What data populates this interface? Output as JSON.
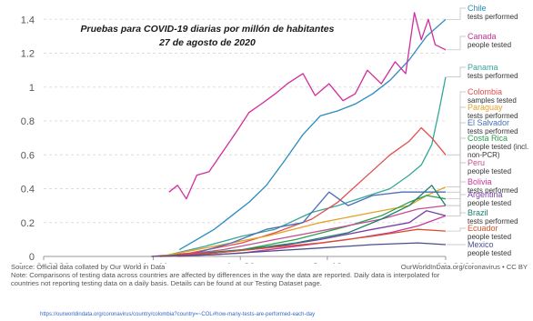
{
  "chart_data": {
    "type": "line",
    "title": "Pruebas para COVID-19 diarias por millón de habitantes",
    "subtitle": "27 de agosto de 2020",
    "x_ticks": [
      "Jan 8, 2020",
      "Mar 11",
      "Apr 30",
      "Jun 19",
      "Aug 26, 2020"
    ],
    "xlim": [
      "2020-01-08",
      "2020-08-26"
    ],
    "ylim": [
      0,
      1.45
    ],
    "y_ticks": [
      "0",
      "0.2",
      "0.4",
      "0.6",
      "0.8",
      "1",
      "1.2",
      "1.4"
    ],
    "grid": "horizontal dashed",
    "legend": "right",
    "series": [
      {
        "name": "Chile",
        "metric": "tests performed",
        "color": "#2a8cbf",
        "points": [
          [
            "2020-03-26",
            0.04
          ],
          [
            "2020-04-05",
            0.1
          ],
          [
            "2020-04-15",
            0.16
          ],
          [
            "2020-04-25",
            0.24
          ],
          [
            "2020-05-05",
            0.32
          ],
          [
            "2020-05-15",
            0.42
          ],
          [
            "2020-05-25",
            0.56
          ],
          [
            "2020-06-05",
            0.72
          ],
          [
            "2020-06-15",
            0.83
          ],
          [
            "2020-06-25",
            0.86
          ],
          [
            "2020-07-05",
            0.9
          ],
          [
            "2020-07-15",
            0.96
          ],
          [
            "2020-07-25",
            1.04
          ],
          [
            "2020-08-05",
            1.16
          ],
          [
            "2020-08-15",
            1.3
          ],
          [
            "2020-08-26",
            1.4
          ]
        ]
      },
      {
        "name": "Canada",
        "metric": "people tested",
        "color": "#d12d9c",
        "points": [
          [
            "2020-03-20",
            0.38
          ],
          [
            "2020-03-25",
            0.42
          ],
          [
            "2020-03-30",
            0.34
          ],
          [
            "2020-04-05",
            0.48
          ],
          [
            "2020-04-12",
            0.5
          ],
          [
            "2020-04-20",
            0.62
          ],
          [
            "2020-04-28",
            0.74
          ],
          [
            "2020-05-05",
            0.85
          ],
          [
            "2020-05-12",
            0.9
          ],
          [
            "2020-05-20",
            0.96
          ],
          [
            "2020-05-27",
            1.02
          ],
          [
            "2020-06-05",
            1.08
          ],
          [
            "2020-06-12",
            0.95
          ],
          [
            "2020-06-20",
            1.02
          ],
          [
            "2020-06-28",
            0.92
          ],
          [
            "2020-07-05",
            0.96
          ],
          [
            "2020-07-12",
            1.1
          ],
          [
            "2020-07-20",
            1.02
          ],
          [
            "2020-07-28",
            1.15
          ],
          [
            "2020-08-03",
            1.08
          ],
          [
            "2020-08-08",
            1.44
          ],
          [
            "2020-08-12",
            1.28
          ],
          [
            "2020-08-16",
            1.4
          ],
          [
            "2020-08-20",
            1.25
          ],
          [
            "2020-08-26",
            1.22
          ]
        ]
      },
      {
        "name": "Panama",
        "metric": "tests performed",
        "color": "#36a69a",
        "points": [
          [
            "2020-03-20",
            0.01
          ],
          [
            "2020-04-10",
            0.06
          ],
          [
            "2020-05-01",
            0.12
          ],
          [
            "2020-05-20",
            0.16
          ],
          [
            "2020-06-10",
            0.26
          ],
          [
            "2020-06-25",
            0.3
          ],
          [
            "2020-07-10",
            0.35
          ],
          [
            "2020-07-25",
            0.4
          ],
          [
            "2020-08-05",
            0.48
          ],
          [
            "2020-08-12",
            0.54
          ],
          [
            "2020-08-18",
            0.66
          ],
          [
            "2020-08-22",
            0.85
          ],
          [
            "2020-08-26",
            1.06
          ]
        ]
      },
      {
        "name": "Colombia",
        "metric": "samples tested",
        "color": "#e04e4e",
        "points": [
          [
            "2020-03-10",
            0.0
          ],
          [
            "2020-04-01",
            0.02
          ],
          [
            "2020-05-01",
            0.08
          ],
          [
            "2020-05-20",
            0.14
          ],
          [
            "2020-06-10",
            0.22
          ],
          [
            "2020-06-25",
            0.32
          ],
          [
            "2020-07-10",
            0.46
          ],
          [
            "2020-07-25",
            0.6
          ],
          [
            "2020-08-05",
            0.68
          ],
          [
            "2020-08-12",
            0.76
          ],
          [
            "2020-08-18",
            0.7
          ],
          [
            "2020-08-26",
            0.6
          ]
        ]
      },
      {
        "name": "Paraguay",
        "metric": "tests performed",
        "color": "#e3a22a",
        "points": [
          [
            "2020-03-15",
            0.0
          ],
          [
            "2020-04-15",
            0.06
          ],
          [
            "2020-05-15",
            0.12
          ],
          [
            "2020-06-15",
            0.2
          ],
          [
            "2020-07-15",
            0.26
          ],
          [
            "2020-08-05",
            0.3
          ],
          [
            "2020-08-15",
            0.36
          ],
          [
            "2020-08-26",
            0.41
          ]
        ]
      },
      {
        "name": "El Salvador",
        "metric": "tests performed",
        "color": "#4a6fb5",
        "points": [
          [
            "2020-04-01",
            0.01
          ],
          [
            "2020-04-25",
            0.08
          ],
          [
            "2020-05-15",
            0.16
          ],
          [
            "2020-06-05",
            0.2
          ],
          [
            "2020-06-20",
            0.38
          ],
          [
            "2020-07-01",
            0.3
          ],
          [
            "2020-07-15",
            0.36
          ],
          [
            "2020-08-01",
            0.38
          ],
          [
            "2020-08-26",
            0.38
          ]
        ]
      },
      {
        "name": "Costa Rica",
        "metric": "people tested (incl. non-PCR)",
        "color": "#2e9e4f",
        "points": [
          [
            "2020-03-15",
            0.0
          ],
          [
            "2020-05-01",
            0.04
          ],
          [
            "2020-06-01",
            0.1
          ],
          [
            "2020-07-01",
            0.18
          ],
          [
            "2020-07-20",
            0.24
          ],
          [
            "2020-08-05",
            0.32
          ],
          [
            "2020-08-15",
            0.36
          ],
          [
            "2020-08-26",
            0.34
          ]
        ]
      },
      {
        "name": "Peru",
        "metric": "people tested",
        "color": "#c44e8f",
        "points": [
          [
            "2020-03-20",
            0.0
          ],
          [
            "2020-04-20",
            0.04
          ],
          [
            "2020-05-20",
            0.1
          ],
          [
            "2020-06-20",
            0.16
          ],
          [
            "2020-07-20",
            0.22
          ],
          [
            "2020-08-10",
            0.28
          ],
          [
            "2020-08-26",
            0.3
          ]
        ]
      },
      {
        "name": "Bolivia",
        "metric": "tests performed",
        "color": "#c7359c",
        "points": [
          [
            "2020-03-25",
            0.0
          ],
          [
            "2020-05-01",
            0.02
          ],
          [
            "2020-06-01",
            0.06
          ],
          [
            "2020-07-01",
            0.1
          ],
          [
            "2020-07-25",
            0.14
          ],
          [
            "2020-08-10",
            0.18
          ],
          [
            "2020-08-26",
            0.24
          ]
        ]
      },
      {
        "name": "Argentina",
        "metric": "people tested",
        "color": "#7b3fa8",
        "points": [
          [
            "2020-03-15",
            0.0
          ],
          [
            "2020-04-15",
            0.02
          ],
          [
            "2020-05-15",
            0.05
          ],
          [
            "2020-06-15",
            0.1
          ],
          [
            "2020-07-15",
            0.16
          ],
          [
            "2020-08-05",
            0.2
          ],
          [
            "2020-08-15",
            0.27
          ],
          [
            "2020-08-26",
            0.24
          ]
        ]
      },
      {
        "name": "Brazil",
        "metric": "tests performed",
        "color": "#1b7f6e",
        "points": [
          [
            "2020-04-01",
            0.01
          ],
          [
            "2020-05-01",
            0.04
          ],
          [
            "2020-06-01",
            0.08
          ],
          [
            "2020-07-01",
            0.14
          ],
          [
            "2020-07-20",
            0.22
          ],
          [
            "2020-08-05",
            0.3
          ],
          [
            "2020-08-18",
            0.42
          ],
          [
            "2020-08-26",
            0.3
          ]
        ]
      },
      {
        "name": "Ecuador",
        "metric": "people tested",
        "color": "#d9512c",
        "points": [
          [
            "2020-03-15",
            0.0
          ],
          [
            "2020-04-15",
            0.02
          ],
          [
            "2020-05-15",
            0.05
          ],
          [
            "2020-06-15",
            0.08
          ],
          [
            "2020-07-15",
            0.12
          ],
          [
            "2020-08-10",
            0.16
          ],
          [
            "2020-08-26",
            0.15
          ]
        ]
      },
      {
        "name": "Mexico",
        "metric": "people tested",
        "color": "#4a4f8c",
        "points": [
          [
            "2020-03-10",
            0.0
          ],
          [
            "2020-04-15",
            0.01
          ],
          [
            "2020-05-15",
            0.03
          ],
          [
            "2020-06-15",
            0.05
          ],
          [
            "2020-07-15",
            0.07
          ],
          [
            "2020-08-10",
            0.08
          ],
          [
            "2020-08-26",
            0.07
          ]
        ]
      }
    ]
  },
  "footer": {
    "source": "Source: Official data collated by Our World in Data",
    "owid": "OurWorldInData.org/coronavirus • CC BY",
    "note_line1": "Note: Comparisons of testing data across countries are affected by differences in the way the data are reported. Daily data is interpolated for",
    "note_line2": "countries not reporting testing data on a daily basis. Details can be found at our Testing Dataset page.",
    "url": "https://ourworldindata.org/coronavirus/country/colombia?country=~COL#how-many-tests-are-performed-each-day"
  }
}
